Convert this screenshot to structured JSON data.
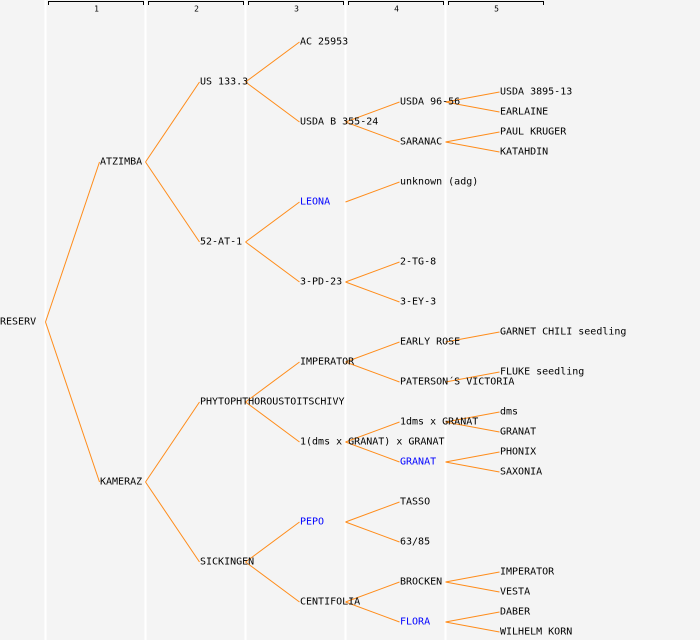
{
  "colors": {
    "background": "#f4f4f4",
    "line": "#ff8c1a",
    "text": "#000000",
    "highlight": "#0000ff",
    "separator": "#ffffff"
  },
  "columns": [
    "1",
    "2",
    "3",
    "4",
    "5"
  ],
  "tree": {
    "name": "RESERV",
    "children": [
      {
        "name": "ATZIMBA",
        "children": [
          {
            "name": "US 133.3",
            "children": [
              {
                "name": "AC 25953"
              },
              {
                "name": "USDA B 355-24",
                "children": [
                  {
                    "name": "USDA 96-56",
                    "children": [
                      {
                        "name": "USDA 3895-13"
                      },
                      {
                        "name": "EARLAINE"
                      }
                    ]
                  },
                  {
                    "name": "SARANAC",
                    "children": [
                      {
                        "name": "PAUL KRUGER"
                      },
                      {
                        "name": "KATAHDIN"
                      }
                    ]
                  }
                ]
              }
            ]
          },
          {
            "name": "52-AT-1",
            "children": [
              {
                "name": "LEONA",
                "highlight": true,
                "children": [
                  {
                    "name": "unknown (adg)"
                  }
                ]
              },
              {
                "name": "3-PD-23",
                "children": [
                  {
                    "name": "2-TG-8"
                  },
                  {
                    "name": "3-EY-3"
                  }
                ]
              }
            ]
          }
        ]
      },
      {
        "name": "KAMERAZ",
        "children": [
          {
            "name": "PHYTOPHTHOROUSTOITSCHIVY",
            "children": [
              {
                "name": "IMPERATOR",
                "children": [
                  {
                    "name": "EARLY ROSE",
                    "children": [
                      {
                        "name": "GARNET CHILI seedling"
                      }
                    ]
                  },
                  {
                    "name": "PATERSON´S VICTORIA",
                    "children": [
                      {
                        "name": "FLUKE seedling"
                      }
                    ]
                  }
                ]
              },
              {
                "name": "1(dms x GRANAT) x GRANAT",
                "children": [
                  {
                    "name": "1dms x GRANAT",
                    "children": [
                      {
                        "name": "dms"
                      },
                      {
                        "name": "GRANAT"
                      }
                    ]
                  },
                  {
                    "name": "GRANAT",
                    "highlight": true,
                    "children": [
                      {
                        "name": "PHONIX"
                      },
                      {
                        "name": "SAXONIA"
                      }
                    ]
                  }
                ]
              }
            ]
          },
          {
            "name": "SICKINGEN",
            "children": [
              {
                "name": "PEPO",
                "highlight": true,
                "children": [
                  {
                    "name": "TASSO"
                  },
                  {
                    "name": "63/85"
                  }
                ]
              },
              {
                "name": "CENTIFOLIA",
                "children": [
                  {
                    "name": "BROCKEN",
                    "children": [
                      {
                        "name": "IMPERATOR"
                      },
                      {
                        "name": "VESTA"
                      }
                    ]
                  },
                  {
                    "name": "FLORA",
                    "highlight": true,
                    "children": [
                      {
                        "name": "DABER"
                      },
                      {
                        "name": "WILHELM KORN"
                      }
                    ]
                  }
                ]
              }
            ]
          }
        ]
      }
    ]
  }
}
